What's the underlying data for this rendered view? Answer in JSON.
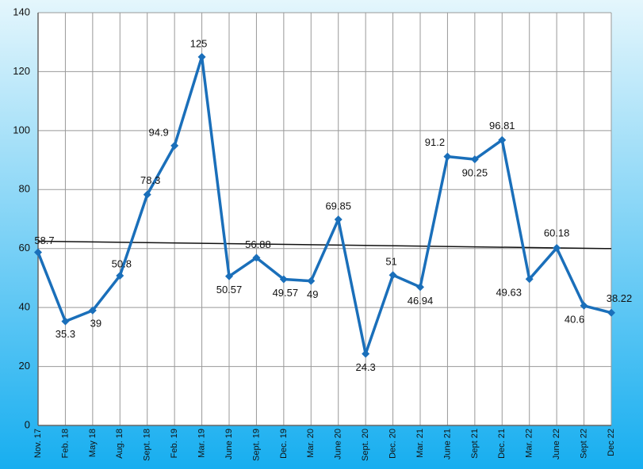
{
  "chart_data": {
    "type": "line",
    "categories": [
      "Nov. 17",
      "Feb. 18",
      "May 18",
      "Aug. 18",
      "Sept. 18",
      "Feb. 19",
      "Mar. 19",
      "June 19",
      "Sept. 19",
      "Dec. 19",
      "Mar. 20",
      "June 20",
      "Sept. 20",
      "Dec. 20",
      "Mar. 21",
      "June 21",
      "Sept 21",
      "Dec. 21",
      "Mar. 22",
      "June 22",
      "Sept 22",
      "Dec 22"
    ],
    "values": [
      58.7,
      35.3,
      39,
      50.8,
      78.3,
      94.9,
      125,
      50.57,
      56.88,
      49.57,
      49,
      69.85,
      24.3,
      51,
      46.94,
      91.2,
      90.25,
      96.81,
      49.63,
      60.18,
      40.6,
      38.22
    ],
    "color": "#1a6fba",
    "trendline": true,
    "ylim": [
      0,
      140
    ],
    "yticks": [
      0,
      20,
      40,
      60,
      80,
      100,
      120,
      140
    ],
    "grid": true
  }
}
